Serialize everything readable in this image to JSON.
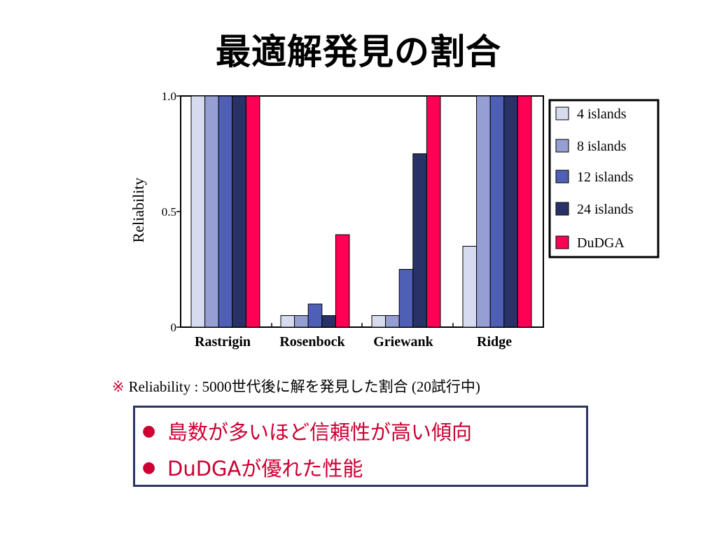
{
  "slide": {
    "title": "最適解発見の割合"
  },
  "note": {
    "mark": "※",
    "text": "Reliability : 5000世代後に解を発見した割合 (20試行中)"
  },
  "summary": {
    "bullet": "●",
    "items": [
      "島数が多いほど信頼性が高い傾向",
      "DuDGAが優れた性能"
    ]
  },
  "colors": {
    "4 islands": "#d6dbef",
    "8 islands": "#959fd3",
    "12 islands": "#4e5fb5",
    "24 islands": "#283266",
    "DuDGA": "#ff0055",
    "text_red": "#cc0033",
    "box_border": "#2e3562"
  },
  "chart_data": {
    "type": "bar",
    "categories": [
      "Rastrigin",
      "Rosenbock",
      "Griewank",
      "Ridge"
    ],
    "series": [
      {
        "name": "4 islands",
        "values": [
          1.0,
          0.05,
          0.05,
          0.35
        ]
      },
      {
        "name": "8 islands",
        "values": [
          1.0,
          0.05,
          0.05,
          1.0
        ]
      },
      {
        "name": "12 islands",
        "values": [
          1.0,
          0.1,
          0.25,
          1.0
        ]
      },
      {
        "name": "24 islands",
        "values": [
          1.0,
          0.05,
          0.75,
          1.0
        ]
      },
      {
        "name": "DuDGA",
        "values": [
          1.0,
          0.4,
          1.0,
          1.0
        ]
      }
    ],
    "ylabel": "Reliability",
    "ylim": [
      0,
      1.0
    ],
    "yticks": [
      {
        "value": 0,
        "label": "0"
      },
      {
        "value": 0.5,
        "label": "0.5"
      },
      {
        "value": 1.0,
        "label": "1.0"
      }
    ],
    "legend_position": "right",
    "grid": false
  }
}
